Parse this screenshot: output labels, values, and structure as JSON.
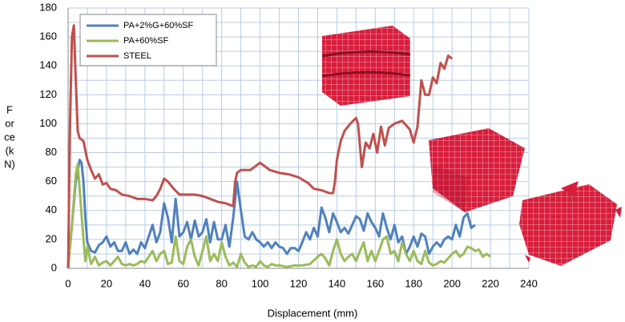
{
  "chart_data": {
    "type": "line",
    "xlabel": "Displacement (mm)",
    "ylabel_lines": [
      "F",
      "or",
      "ce",
      "(k",
      "N)"
    ],
    "xlim": [
      0,
      240
    ],
    "ylim": [
      0,
      180
    ],
    "xticks": [
      0,
      20,
      40,
      60,
      80,
      100,
      120,
      140,
      160,
      180,
      200,
      220,
      240
    ],
    "yticks": [
      0,
      20,
      40,
      60,
      80,
      100,
      120,
      140,
      160,
      180
    ],
    "grid": true,
    "legend": "upper left",
    "series": [
      {
        "name": "PA+2%G+60%SF",
        "color": "#4f81bd",
        "x": [
          0,
          2,
          4,
          6,
          7,
          8,
          9,
          10,
          12,
          14,
          16,
          18,
          20,
          22,
          24,
          26,
          28,
          30,
          32,
          34,
          36,
          38,
          40,
          42,
          44,
          46,
          48,
          50,
          52,
          54,
          56,
          58,
          60,
          62,
          64,
          66,
          68,
          70,
          72,
          74,
          76,
          78,
          80,
          82,
          84,
          86,
          88,
          90,
          92,
          94,
          96,
          98,
          100,
          102,
          104,
          106,
          108,
          110,
          112,
          114,
          116,
          118,
          120,
          122,
          124,
          126,
          128,
          130,
          132,
          134,
          136,
          138,
          140,
          142,
          144,
          146,
          148,
          150,
          152,
          154,
          156,
          158,
          160,
          162,
          164,
          166,
          168,
          170,
          172,
          174,
          176,
          178,
          180,
          182,
          184,
          186,
          188,
          190,
          192,
          194,
          196,
          198,
          200,
          202,
          204,
          206,
          208,
          210,
          212
        ],
        "values": [
          0,
          30,
          60,
          75,
          73,
          60,
          35,
          18,
          12,
          11,
          16,
          18,
          22,
          15,
          18,
          12,
          12,
          18,
          10,
          13,
          10,
          18,
          14,
          22,
          30,
          18,
          25,
          45,
          35,
          18,
          48,
          22,
          25,
          32,
          20,
          33,
          22,
          25,
          34,
          18,
          32,
          20,
          20,
          30,
          15,
          35,
          60,
          40,
          22,
          20,
          25,
          20,
          18,
          15,
          18,
          14,
          18,
          15,
          14,
          10,
          14,
          14,
          12,
          18,
          25,
          20,
          28,
          22,
          42,
          35,
          25,
          38,
          32,
          25,
          28,
          24,
          30,
          36,
          34,
          26,
          38,
          32,
          28,
          22,
          38,
          28,
          20,
          30,
          18,
          22,
          10,
          15,
          22,
          15,
          24,
          22,
          10,
          15,
          18,
          15,
          20,
          22,
          20,
          30,
          22,
          35,
          38,
          28,
          30
        ]
      },
      {
        "name": "PA+60%SF",
        "color": "#9bbb59",
        "x": [
          0,
          2,
          4,
          5,
          6,
          8,
          9,
          10,
          12,
          14,
          16,
          18,
          20,
          22,
          24,
          26,
          28,
          30,
          32,
          34,
          36,
          38,
          40,
          42,
          44,
          46,
          48,
          50,
          52,
          54,
          56,
          58,
          60,
          62,
          64,
          66,
          68,
          70,
          72,
          74,
          76,
          78,
          80,
          82,
          84,
          86,
          88,
          90,
          92,
          94,
          96,
          98,
          100,
          102,
          104,
          106,
          108,
          110,
          114,
          118,
          122,
          126,
          130,
          132,
          134,
          136,
          138,
          140,
          142,
          144,
          146,
          148,
          150,
          152,
          154,
          156,
          158,
          160,
          162,
          164,
          166,
          168,
          170,
          172,
          174,
          176,
          178,
          180,
          182,
          184,
          186,
          188,
          190,
          192,
          194,
          196,
          198,
          200,
          202,
          204,
          206,
          208,
          210,
          212,
          214,
          216,
          218,
          220
        ],
        "values": [
          0,
          30,
          65,
          72,
          55,
          20,
          5,
          15,
          3,
          8,
          2,
          4,
          5,
          2,
          5,
          8,
          3,
          2,
          3,
          2,
          3,
          5,
          4,
          8,
          12,
          5,
          10,
          12,
          3,
          4,
          22,
          5,
          3,
          15,
          20,
          8,
          2,
          12,
          22,
          5,
          10,
          5,
          18,
          8,
          2,
          4,
          1,
          10,
          4,
          1,
          2,
          1,
          5,
          2,
          1,
          3,
          2,
          2,
          1,
          2,
          2,
          3,
          8,
          10,
          7,
          2,
          12,
          20,
          10,
          5,
          8,
          10,
          5,
          12,
          18,
          5,
          12,
          5,
          12,
          20,
          22,
          10,
          12,
          5,
          18,
          10,
          5,
          12,
          5,
          3,
          12,
          4,
          2,
          3,
          5,
          4,
          7,
          10,
          12,
          8,
          10,
          15,
          14,
          12,
          13,
          8,
          10,
          8
        ]
      },
      {
        "name": "STEEL",
        "color": "#c0504d",
        "x": [
          0,
          1,
          2,
          3,
          4,
          5,
          6,
          8,
          10,
          12,
          14,
          16,
          18,
          20,
          22,
          25,
          28,
          32,
          36,
          40,
          44,
          46,
          48,
          50,
          52,
          55,
          58,
          62,
          66,
          70,
          74,
          78,
          82,
          86,
          87,
          88,
          90,
          95,
          100,
          105,
          110,
          115,
          120,
          125,
          128,
          132,
          136,
          138,
          139,
          140,
          142,
          144,
          147,
          150,
          151,
          153,
          155,
          157,
          159,
          161,
          163,
          165,
          167,
          170,
          174,
          178,
          180,
          182,
          184,
          186,
          188,
          190,
          192,
          194,
          196,
          198,
          200
        ],
        "values": [
          0,
          100,
          160,
          168,
          130,
          95,
          90,
          88,
          75,
          68,
          62,
          65,
          58,
          59,
          55,
          54,
          51,
          50,
          48,
          48,
          47,
          50,
          55,
          62,
          60,
          55,
          51,
          51,
          51,
          50,
          48,
          46,
          45,
          43,
          60,
          66,
          68,
          68,
          73,
          68,
          66,
          65,
          63,
          59,
          55,
          54,
          52,
          52,
          60,
          75,
          88,
          95,
          100,
          104,
          100,
          70,
          87,
          83,
          93,
          80,
          98,
          85,
          97,
          100,
          102,
          96,
          87,
          98,
          130,
          120,
          120,
          132,
          128,
          142,
          138,
          147,
          145
        ]
      }
    ]
  }
}
